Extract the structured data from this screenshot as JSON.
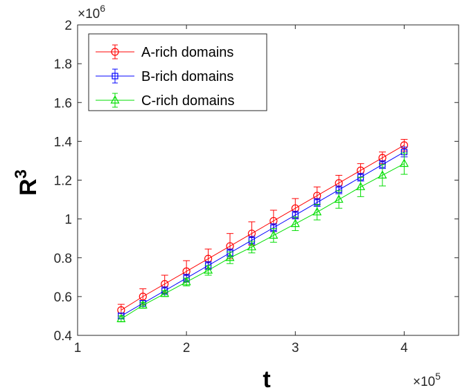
{
  "chart_data": {
    "type": "line",
    "title": "",
    "xlabel": "t",
    "ylabel": "R",
    "ylabel_superscript": "3",
    "x_multiplier": "×10",
    "x_multiplier_exp": "5",
    "y_multiplier": "×10",
    "y_multiplier_exp": "6",
    "xlim": [
      1,
      4.5
    ],
    "ylim": [
      0.4,
      2
    ],
    "x_ticks": [
      1,
      2,
      3,
      4
    ],
    "x_tick_labels": [
      "1",
      "2",
      "3",
      "4"
    ],
    "y_ticks": [
      0.4,
      0.6,
      0.8,
      1,
      1.2,
      1.4,
      1.6,
      1.8,
      2
    ],
    "y_tick_labels": [
      "0.4",
      "0.6",
      "0.8",
      "1",
      "1.2",
      "1.4",
      "1.6",
      "1.8",
      "2"
    ],
    "grid": false,
    "legend_position": "top-left",
    "x": [
      1.4,
      1.6,
      1.8,
      2.0,
      2.2,
      2.4,
      2.6,
      2.8,
      3.0,
      3.2,
      3.4,
      3.6,
      3.8,
      4.0
    ],
    "series": [
      {
        "name": "A-rich domains",
        "color": "#ff0000",
        "marker": "circle",
        "values": [
          0.53,
          0.6,
          0.665,
          0.73,
          0.795,
          0.86,
          0.925,
          0.99,
          1.055,
          1.12,
          1.185,
          1.25,
          1.315,
          1.38
        ],
        "errors": [
          0.03,
          0.04,
          0.045,
          0.055,
          0.05,
          0.065,
          0.06,
          0.055,
          0.05,
          0.045,
          0.04,
          0.035,
          0.03,
          0.03
        ]
      },
      {
        "name": "B-rich domains",
        "color": "#0000ff",
        "marker": "square",
        "values": [
          0.5,
          0.565,
          0.63,
          0.695,
          0.76,
          0.825,
          0.89,
          0.955,
          1.02,
          1.085,
          1.15,
          1.215,
          1.28,
          1.345
        ],
        "errors": [
          0.015,
          0.015,
          0.02,
          0.02,
          0.02,
          0.02,
          0.02,
          0.02,
          0.02,
          0.02,
          0.02,
          0.02,
          0.02,
          0.025
        ]
      },
      {
        "name": "C-rich domains",
        "color": "#00dd00",
        "marker": "triangle",
        "values": [
          0.485,
          0.555,
          0.615,
          0.675,
          0.735,
          0.8,
          0.855,
          0.915,
          0.975,
          1.035,
          1.1,
          1.165,
          1.225,
          1.285
        ],
        "errors": [
          0.015,
          0.015,
          0.015,
          0.02,
          0.025,
          0.03,
          0.03,
          0.035,
          0.035,
          0.04,
          0.045,
          0.05,
          0.055,
          0.055
        ]
      }
    ]
  }
}
